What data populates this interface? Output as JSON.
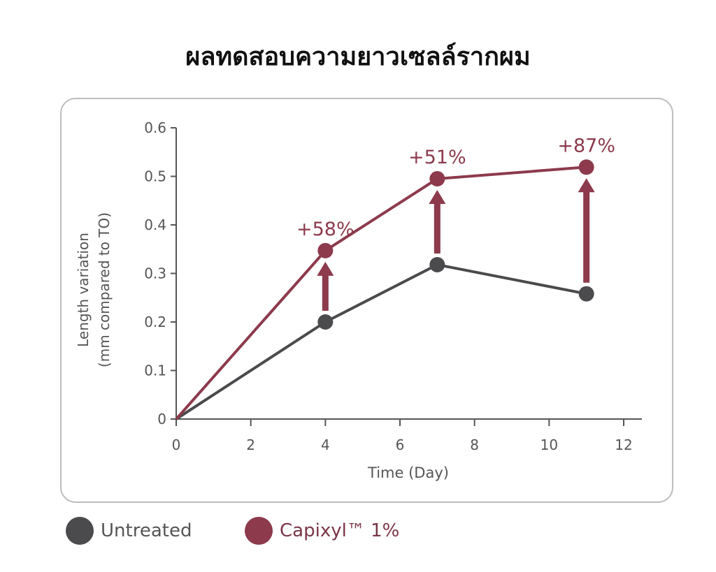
{
  "title": "ผลทดสอบความยาวเซลล์รากผม",
  "colors": {
    "untreated": "#4b4b4e",
    "capixyl": "#8c3a4c",
    "axis": "#555555"
  },
  "chart_data": {
    "type": "line",
    "title": "ผลทดสอบความยาวเซลล์รากผม",
    "xlabel": "Time (Day)",
    "ylabel_line1": "Length variation",
    "ylabel_line2": "(mm compared to TO)",
    "xlim": [
      0,
      12
    ],
    "ylim": [
      0,
      0.6
    ],
    "xticks": [
      "0",
      "2",
      "4",
      "6",
      "8",
      "10",
      "12"
    ],
    "yticks": [
      "0",
      "0.1",
      "0.2",
      "0.3",
      "0.4",
      "0.5",
      "0.6"
    ],
    "series": [
      {
        "name": "Untreated",
        "x": [
          0,
          4,
          7,
          11
        ],
        "y": [
          0,
          0.2,
          0.318,
          0.258
        ]
      },
      {
        "name": "Capixyl™ 1%",
        "x": [
          0,
          4,
          7,
          11
        ],
        "y": [
          0,
          0.347,
          0.495,
          0.519
        ]
      }
    ],
    "annotations": [
      {
        "x": 4,
        "text": "+58%"
      },
      {
        "x": 7,
        "text": "+51%"
      },
      {
        "x": 11,
        "text": "+87%"
      }
    ],
    "legend": "bottom-left"
  }
}
